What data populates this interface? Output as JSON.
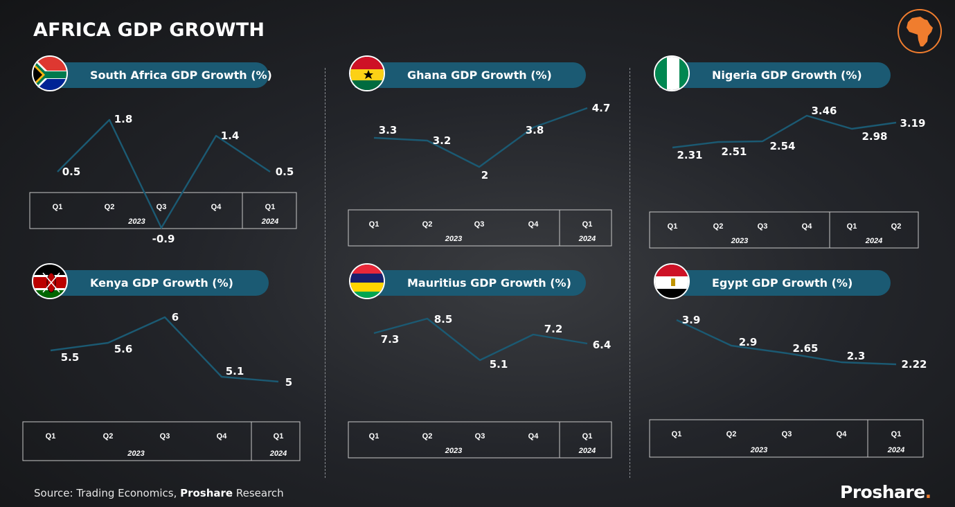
{
  "title": "AFRICA GDP GROWTH",
  "source": {
    "prefix": "Source: Trading Economics, ",
    "bold": "Proshare",
    "suffix": " Research"
  },
  "brand": {
    "name": "Proshare",
    "dot": "."
  },
  "colors": {
    "line": "#1b5a73",
    "pill": "#1b5a73",
    "accent": "#f07d2e"
  },
  "logo_icon": "africa-map-icon",
  "chart_data": [
    {
      "type": "line",
      "title": "South Africa GDP Growth (%)",
      "flag": "south-africa",
      "categories": [
        "Q1",
        "Q2",
        "Q3",
        "Q4",
        "Q1"
      ],
      "years": [
        {
          "label": "2023",
          "span": 4
        },
        {
          "label": "2024",
          "span": 1
        }
      ],
      "values": [
        0.5,
        1.8,
        -0.9,
        1.4,
        0.5
      ],
      "labels": [
        "0.5",
        "1.8",
        "-0.9",
        "1.4",
        "0.5"
      ],
      "ylim": [
        -1,
        2
      ]
    },
    {
      "type": "line",
      "title": "Ghana GDP Growth (%)",
      "flag": "ghana",
      "categories": [
        "Q1",
        "Q2",
        "Q3",
        "Q4",
        "Q1"
      ],
      "years": [
        {
          "label": "2023",
          "span": 4
        },
        {
          "label": "2024",
          "span": 1
        }
      ],
      "values": [
        3.3,
        3.2,
        2,
        3.8,
        4.7
      ],
      "labels": [
        "3.3",
        "3.2",
        "2",
        "3.8",
        "4.7"
      ],
      "ylim": [
        2,
        4.7
      ]
    },
    {
      "type": "line",
      "title": "Nigeria GDP Growth (%)",
      "flag": "nigeria",
      "categories": [
        "Q1",
        "Q2",
        "Q3",
        "Q4",
        "Q1",
        "Q2"
      ],
      "years": [
        {
          "label": "2023",
          "span": 4
        },
        {
          "label": "2024",
          "span": 2
        }
      ],
      "values": [
        2.31,
        2.51,
        2.54,
        3.46,
        2.98,
        3.19
      ],
      "labels": [
        "2.31",
        "2.51",
        "2.54",
        "3.46",
        "2.98",
        "3.19"
      ],
      "ylim": [
        2.31,
        3.46
      ]
    },
    {
      "type": "line",
      "title": "Kenya GDP Growth (%)",
      "flag": "kenya",
      "categories": [
        "Q1",
        "Q2",
        "Q3",
        "Q4",
        "Q1"
      ],
      "years": [
        {
          "label": "2023",
          "span": 4
        },
        {
          "label": "2024",
          "span": 1
        }
      ],
      "values": [
        5.5,
        5.6,
        6,
        5.1,
        5
      ],
      "labels": [
        "5.5",
        "5.6",
        "6",
        "5.1",
        "5"
      ],
      "ylim": [
        5,
        6
      ]
    },
    {
      "type": "line",
      "title": "Mauritius GDP Growth (%)",
      "flag": "mauritius",
      "categories": [
        "Q1",
        "Q2",
        "Q3",
        "Q4",
        "Q1"
      ],
      "years": [
        {
          "label": "2023",
          "span": 4
        },
        {
          "label": "2024",
          "span": 1
        }
      ],
      "values": [
        7.3,
        8.5,
        5.1,
        7.2,
        6.4
      ],
      "labels": [
        "7.3",
        "8.5",
        "5.1",
        "7.2",
        "6.4"
      ],
      "ylim": [
        5.1,
        8.5
      ]
    },
    {
      "type": "line",
      "title": "Egypt GDP Growth (%)",
      "flag": "egypt",
      "categories": [
        "Q1",
        "Q2",
        "Q3",
        "Q4",
        "Q1"
      ],
      "years": [
        {
          "label": "2023",
          "span": 4
        },
        {
          "label": "2024",
          "span": 1
        }
      ],
      "values": [
        3.9,
        2.9,
        2.65,
        2.3,
        2.22
      ],
      "labels": [
        "3.9",
        "2.9",
        "2.65",
        "2.3",
        "2.22"
      ],
      "ylim": [
        2.22,
        3.9
      ]
    }
  ]
}
